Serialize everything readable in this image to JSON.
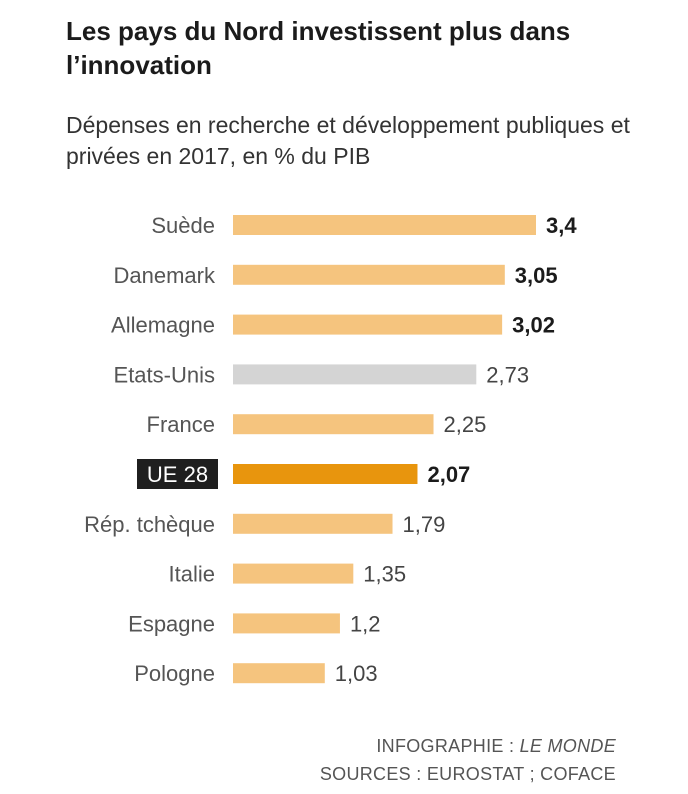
{
  "chart_data": {
    "type": "bar",
    "orientation": "horizontal",
    "title": "Les pays du Nord investissent plus dans l’innovation",
    "subtitle": "Dépenses en recherche et développement publiques et privées en 2017, en % du PIB",
    "categories": [
      "Suède",
      "Danemark",
      "Allemagne",
      "Etats-Unis",
      "France",
      "UE 28",
      "Rép. tchèque",
      "Italie",
      "Espagne",
      "Pologne"
    ],
    "values": [
      3.4,
      3.05,
      3.02,
      2.73,
      2.25,
      2.07,
      1.79,
      1.35,
      1.2,
      1.03
    ],
    "value_labels": [
      "3,4",
      "3,05",
      "3,02",
      "2,73",
      "2,25",
      "2,07",
      "1,79",
      "1,35",
      "1,2",
      "1,03"
    ],
    "bold_labels": [
      true,
      true,
      true,
      false,
      false,
      true,
      false,
      false,
      false,
      false
    ],
    "highlighted": [
      "UE 28"
    ],
    "grey_bars": [
      "Etats-Unis"
    ],
    "colors": {
      "default_bar": "#f5c47e",
      "highlight_bar": "#e8950d",
      "grey_bar": "#d4d4d4",
      "highlight_label_bg": "#1f1f1f"
    },
    "xlim": [
      0,
      3.4
    ],
    "grid": false,
    "legend": "none"
  },
  "source": {
    "line1_prefix": "INFOGRAPHIE : ",
    "line1_name": "LE MONDE",
    "line2": "SOURCES : EUROSTAT ; COFACE"
  }
}
